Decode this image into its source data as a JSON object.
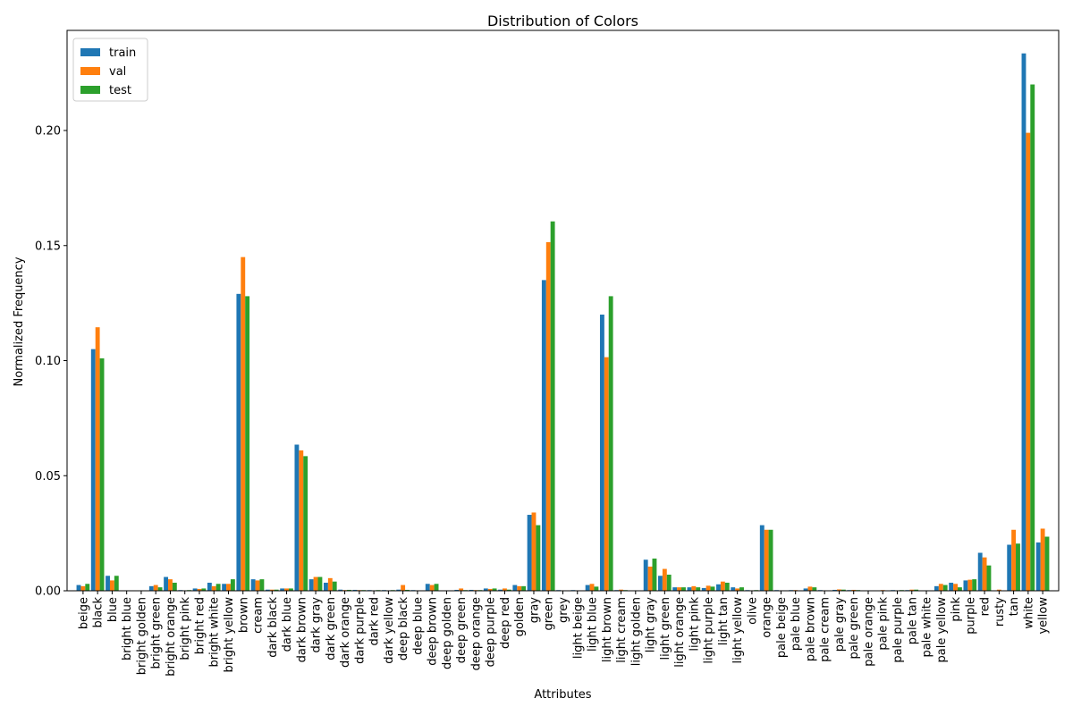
{
  "chart_data": {
    "type": "bar",
    "title": "Distribution of Colors",
    "xlabel": "Attributes",
    "ylabel": "Normalized Frequency",
    "ylim": [
      0,
      0.2435
    ],
    "yticks": [
      "0.00",
      "0.05",
      "0.10",
      "0.15",
      "0.20"
    ],
    "legend_position": "top-left",
    "categories": [
      "beige",
      "black",
      "blue",
      "bright blue",
      "bright golden",
      "bright green",
      "bright orange",
      "bright pink",
      "bright red",
      "bright white",
      "bright yellow",
      "brown",
      "cream",
      "dark black",
      "dark blue",
      "dark brown",
      "dark gray",
      "dark green",
      "dark orange",
      "dark purple",
      "dark red",
      "dark yellow",
      "deep black",
      "deep blue",
      "deep brown",
      "deep golden",
      "deep green",
      "deep orange",
      "deep purple",
      "deep red",
      "golden",
      "gray",
      "green",
      "grey",
      "light beige",
      "light blue",
      "light brown",
      "light cream",
      "light golden",
      "light gray",
      "light green",
      "light orange",
      "light pink",
      "light purple",
      "light tan",
      "light yellow",
      "olive",
      "orange",
      "pale beige",
      "pale blue",
      "pale brown",
      "pale cream",
      "pale gray",
      "pale green",
      "pale orange",
      "pale pink",
      "pale purple",
      "pale tan",
      "pale white",
      "pale yellow",
      "pink",
      "purple",
      "red",
      "rusty",
      "tan",
      "white",
      "yellow"
    ],
    "series": [
      {
        "name": "train",
        "color": "#1f77b4",
        "values": [
          0.0025,
          0.105,
          0.0065,
          0.0001,
          0.0001,
          0.002,
          0.006,
          0.0003,
          0.001,
          0.0035,
          0.003,
          0.129,
          0.005,
          0.0005,
          0.001,
          0.0635,
          0.005,
          0.0035,
          0.0005,
          0.0004,
          0.0003,
          0.0003,
          0.0005,
          0.0003,
          0.003,
          0.0001,
          0.0004,
          0.0004,
          0.001,
          0.0005,
          0.0025,
          0.033,
          0.135,
          0.0003,
          0.0003,
          0.0025,
          0.12,
          0.0003,
          0.0001,
          0.0135,
          0.0065,
          0.0015,
          0.0015,
          0.0012,
          0.0028,
          0.0015,
          0.0003,
          0.0285,
          0.0003,
          0.0003,
          0.001,
          0.0003,
          0.0004,
          0.0003,
          0.0001,
          0.0001,
          0.0003,
          0.0003,
          0.0001,
          0.002,
          0.0035,
          0.0045,
          0.0165,
          0.0001,
          0.02,
          0.2335,
          0.021
        ]
      },
      {
        "name": "val",
        "color": "#ff7f0e",
        "values": [
          0.002,
          0.1145,
          0.0045,
          0.0001,
          0.0001,
          0.0025,
          0.005,
          0.0002,
          0.0008,
          0.002,
          0.003,
          0.145,
          0.0045,
          0.0005,
          0.001,
          0.061,
          0.006,
          0.0055,
          0.0003,
          0.0003,
          0.0002,
          0.0002,
          0.0025,
          0.0002,
          0.0025,
          0.0001,
          0.001,
          0.0003,
          0.0008,
          0.001,
          0.002,
          0.034,
          0.1515,
          0.0002,
          0.0002,
          0.003,
          0.1015,
          0.0005,
          0.0001,
          0.0105,
          0.0095,
          0.0015,
          0.002,
          0.0022,
          0.004,
          0.001,
          0.0002,
          0.0265,
          0.0002,
          0.0003,
          0.0018,
          0.0002,
          0.0006,
          0.0004,
          0.0001,
          0.0003,
          0.0002,
          0.0005,
          0.0001,
          0.003,
          0.003,
          0.0048,
          0.0145,
          0.0005,
          0.0265,
          0.199,
          0.027
        ]
      },
      {
        "name": "test",
        "color": "#2ca02c",
        "values": [
          0.003,
          0.101,
          0.0065,
          0.0001,
          0.0001,
          0.0015,
          0.0035,
          0.0003,
          0.001,
          0.003,
          0.005,
          0.128,
          0.005,
          0.0005,
          0.001,
          0.0585,
          0.006,
          0.004,
          0.0004,
          0.0003,
          0.0003,
          0.0003,
          0.0004,
          0.0002,
          0.003,
          0.0001,
          0.0003,
          0.0003,
          0.001,
          0.0005,
          0.002,
          0.0285,
          0.1605,
          0.0002,
          0.0002,
          0.0018,
          0.128,
          0.0003,
          0.0001,
          0.014,
          0.007,
          0.0015,
          0.0015,
          0.0018,
          0.0035,
          0.0015,
          0.0003,
          0.0265,
          0.0002,
          0.0002,
          0.0015,
          0.0002,
          0.0005,
          0.0003,
          0.0001,
          0.0001,
          0.0003,
          0.0005,
          0.0001,
          0.0025,
          0.0015,
          0.005,
          0.011,
          0.0001,
          0.0205,
          0.22,
          0.0235
        ]
      }
    ]
  }
}
